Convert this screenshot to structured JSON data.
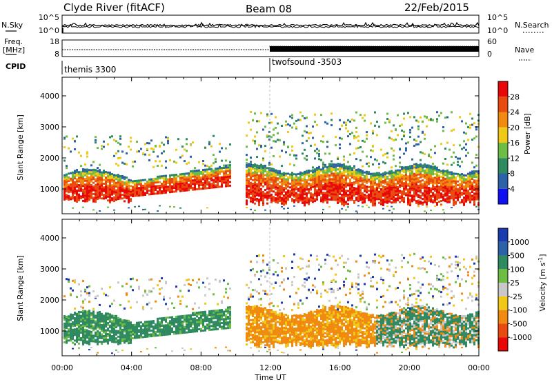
{
  "header": {
    "title": "Clyde River (fitACF)",
    "beam": "Beam 08",
    "date": "22/Feb/2015"
  },
  "left_labels": {
    "nsky": "N.Sky",
    "freq_line1": "Freq.",
    "freq_line2": "[MHz]",
    "cpid": "CPID"
  },
  "right_labels": {
    "nsearch": "N.Search",
    "nave": "Nave"
  },
  "chart_data": [
    {
      "type": "line",
      "name": "noise-panel",
      "yticks_left": [
        "10^5",
        "10^0"
      ],
      "yticks_right": [
        "10^5",
        "10^0"
      ]
    },
    {
      "type": "line",
      "name": "freq-nave-panel",
      "yticks_left": [
        "18",
        "8"
      ],
      "yticks_right": [
        "60",
        "0"
      ]
    },
    {
      "type": "table",
      "name": "cpid-panel",
      "segments": [
        {
          "start_ut": "00:00",
          "label": "themis 3300"
        },
        {
          "start_ut": "12:00",
          "label": "twofsound -3503"
        }
      ]
    },
    {
      "type": "heatmap",
      "name": "power",
      "ylabel": "Slant Range [km]",
      "yticks": [
        "1000",
        "2000",
        "3000",
        "4000"
      ],
      "ylim": [
        200,
        4600
      ],
      "colorbar_label": "Power [dB]",
      "colorbar_ticks": [
        "4",
        "8",
        "12",
        "16",
        "20",
        "24",
        "28"
      ],
      "colors": [
        "#1010f0",
        "#2e62a8",
        "#2f8a62",
        "#6dbc44",
        "#f0c818",
        "#f08a10",
        "#e84a10",
        "#e80808"
      ]
    },
    {
      "type": "heatmap",
      "name": "velocity",
      "ylabel": "Slant Range [km]",
      "yticks": [
        "1000",
        "2000",
        "3000",
        "4000"
      ],
      "ylim": [
        200,
        4600
      ],
      "colorbar_label": "Velocity [m s",
      "colorbar_label_sup": "-1",
      "colorbar_label_end": "]",
      "colorbar_ticks": [
        "1000",
        "500",
        "100",
        "25",
        "-25",
        "-100",
        "-500",
        "-1000"
      ],
      "colors": [
        "#1a3cb0",
        "#2e62a8",
        "#2f8a62",
        "#6dbc44",
        "#c8c8c8",
        "#f0c818",
        "#f08a10",
        "#e84a10",
        "#e80808"
      ]
    }
  ],
  "xaxis": {
    "ticks": [
      "00:00",
      "04:00",
      "08:00",
      "12:00",
      "16:00",
      "20:00",
      "00:00"
    ],
    "label": "Time UT"
  }
}
